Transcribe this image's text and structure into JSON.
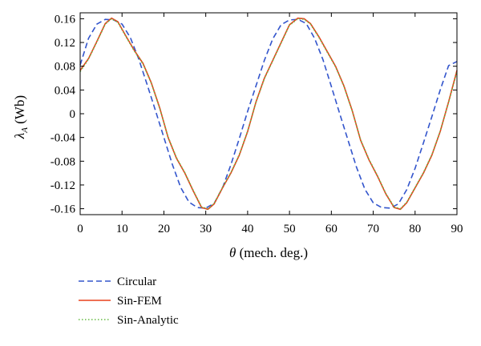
{
  "chart_data": {
    "type": "line",
    "xlabel_symbol": "θ",
    "xlabel_text": " (mech. deg.)",
    "ylabel_symbol": "λ",
    "ylabel_subscript": "A",
    "ylabel_text": " (Wb)",
    "xlim": [
      0,
      90
    ],
    "ylim": [
      -0.17,
      0.17
    ],
    "grid": false,
    "legend_placement": "below",
    "x_ticks": [
      {
        "value": 0,
        "label": "0"
      },
      {
        "value": 10,
        "label": "10"
      },
      {
        "value": 20,
        "label": "20"
      },
      {
        "value": 30,
        "label": "30"
      },
      {
        "value": 40,
        "label": "40"
      },
      {
        "value": 50,
        "label": "50"
      },
      {
        "value": 60,
        "label": "60"
      },
      {
        "value": 70,
        "label": "70"
      },
      {
        "value": 80,
        "label": "80"
      },
      {
        "value": 90,
        "label": "90"
      }
    ],
    "y_ticks": [
      {
        "value": 0.16,
        "label": "0.16"
      },
      {
        "value": 0.12,
        "label": "0.12"
      },
      {
        "value": 0.08,
        "label": "0.08"
      },
      {
        "value": 0.04,
        "label": "0.04"
      },
      {
        "value": 0,
        "label": "0"
      },
      {
        "value": -0.04,
        "label": "-0.04"
      },
      {
        "value": -0.08,
        "label": "-0.08"
      },
      {
        "value": -0.12,
        "label": "-0.12"
      },
      {
        "value": -0.16,
        "label": "-0.16"
      }
    ],
    "series": [
      {
        "name": "Circular",
        "color": "#3355cc",
        "style": "dashed",
        "x": [
          0,
          2,
          4,
          6,
          8,
          10,
          12,
          14,
          16,
          18,
          20,
          22,
          24,
          26,
          28,
          30,
          32,
          34,
          36,
          38,
          40,
          42,
          44,
          46,
          48,
          50,
          52,
          54,
          56,
          58,
          60,
          62,
          64,
          66,
          68,
          70,
          72,
          74,
          76,
          78,
          80,
          82,
          84,
          86,
          88,
          90
        ],
        "y": [
          0.082,
          0.127,
          0.151,
          0.159,
          0.158,
          0.151,
          0.128,
          0.092,
          0.049,
          0.005,
          -0.04,
          -0.085,
          -0.124,
          -0.149,
          -0.158,
          -0.159,
          -0.151,
          -0.125,
          -0.086,
          -0.042,
          0.004,
          0.047,
          0.09,
          0.126,
          0.15,
          0.158,
          0.159,
          0.152,
          0.127,
          0.091,
          0.046,
          0.0,
          -0.045,
          -0.09,
          -0.127,
          -0.15,
          -0.158,
          -0.159,
          -0.152,
          -0.128,
          -0.092,
          -0.049,
          -0.005,
          0.04,
          0.081,
          0.088
        ]
      },
      {
        "name": "Sin-FEM",
        "color": "#e8401c",
        "style": "solid",
        "x": [
          0,
          2,
          4,
          6,
          7.5,
          9,
          11,
          13,
          15,
          17,
          19,
          21,
          23,
          25,
          27,
          29,
          30.5,
          32,
          34,
          36,
          38,
          40,
          42,
          44,
          46,
          48,
          50,
          52,
          53.5,
          55,
          57,
          59,
          61,
          63,
          65,
          67,
          69,
          71,
          73,
          75,
          76.5,
          78,
          80,
          82,
          84,
          86,
          88,
          90
        ],
        "y": [
          0.073,
          0.093,
          0.122,
          0.152,
          0.161,
          0.155,
          0.13,
          0.106,
          0.085,
          0.052,
          0.01,
          -0.04,
          -0.075,
          -0.1,
          -0.13,
          -0.158,
          -0.161,
          -0.152,
          -0.125,
          -0.1,
          -0.07,
          -0.03,
          0.02,
          0.06,
          0.09,
          0.12,
          0.15,
          0.161,
          0.16,
          0.152,
          0.13,
          0.105,
          0.08,
          0.047,
          0.005,
          -0.045,
          -0.078,
          -0.105,
          -0.135,
          -0.158,
          -0.161,
          -0.15,
          -0.125,
          -0.1,
          -0.07,
          -0.03,
          0.02,
          0.073
        ]
      },
      {
        "name": "Sin-Analytic",
        "color": "#66bb44",
        "style": "dotted",
        "x": [
          0,
          2,
          4,
          6,
          7.5,
          9,
          11,
          13,
          15,
          17,
          19,
          21,
          23,
          25,
          27,
          29,
          30.5,
          32,
          34,
          36,
          38,
          40,
          42,
          44,
          46,
          48,
          50,
          52,
          53.5,
          55,
          57,
          59,
          61,
          63,
          65,
          67,
          69,
          71,
          73,
          75,
          76.5,
          78,
          80,
          82,
          84,
          86,
          88,
          90
        ],
        "y": [
          0.071,
          0.092,
          0.121,
          0.151,
          0.16,
          0.154,
          0.129,
          0.105,
          0.084,
          0.051,
          0.009,
          -0.039,
          -0.074,
          -0.099,
          -0.129,
          -0.157,
          -0.16,
          -0.151,
          -0.124,
          -0.099,
          -0.069,
          -0.029,
          0.019,
          0.059,
          0.089,
          0.119,
          0.149,
          0.16,
          0.159,
          0.151,
          0.129,
          0.104,
          0.079,
          0.046,
          0.004,
          -0.044,
          -0.077,
          -0.104,
          -0.134,
          -0.157,
          -0.16,
          -0.149,
          -0.124,
          -0.099,
          -0.069,
          -0.029,
          0.019,
          0.071
        ]
      }
    ]
  }
}
